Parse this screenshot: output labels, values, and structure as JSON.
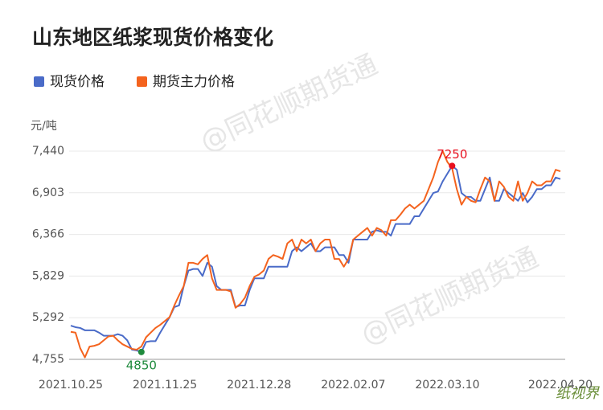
{
  "chart_data": {
    "type": "line",
    "title": "山东地区纸浆现货价格变化",
    "y_unit": "元/吨",
    "categories": [
      "2021.10.25",
      null,
      null,
      null,
      null,
      null,
      null,
      null,
      null,
      null,
      null,
      null,
      null,
      null,
      null,
      null,
      null,
      null,
      null,
      null,
      "2021.11.25",
      null,
      null,
      null,
      null,
      null,
      null,
      null,
      null,
      null,
      null,
      null,
      null,
      null,
      null,
      null,
      null,
      null,
      null,
      null,
      "2021.12.28",
      null,
      null,
      null,
      null,
      null,
      null,
      null,
      null,
      null,
      null,
      null,
      null,
      null,
      null,
      null,
      null,
      null,
      null,
      null,
      "2022.02.07",
      null,
      null,
      null,
      null,
      null,
      null,
      null,
      null,
      null,
      null,
      null,
      null,
      null,
      null,
      null,
      null,
      null,
      null,
      null,
      "2022.03.10",
      null,
      null,
      null,
      null,
      null,
      null,
      null,
      null,
      null,
      null,
      null,
      null,
      null,
      null,
      null,
      null,
      null,
      null,
      null,
      null,
      null,
      null,
      null,
      "2022.04.20"
    ],
    "series": [
      {
        "name": "现货价格",
        "color": "#4a6bc8",
        "values": [
          5190,
          5170,
          5160,
          5130,
          5130,
          5130,
          5100,
          5060,
          5060,
          5060,
          5080,
          5060,
          5000,
          4880,
          4870,
          4850,
          4980,
          4990,
          4990,
          5100,
          5200,
          5300,
          5430,
          5450,
          5700,
          5900,
          5920,
          5920,
          5830,
          6000,
          5950,
          5700,
          5650,
          5650,
          5650,
          5430,
          5450,
          5450,
          5650,
          5800,
          5800,
          5800,
          5950,
          5950,
          5950,
          5950,
          5950,
          6150,
          6200,
          6150,
          6200,
          6250,
          6150,
          6150,
          6200,
          6200,
          6200,
          6100,
          6100,
          6000,
          6300,
          6300,
          6300,
          6300,
          6400,
          6420,
          6400,
          6400,
          6350,
          6500,
          6500,
          6500,
          6500,
          6600,
          6600,
          6700,
          6800,
          6900,
          6920,
          7050,
          7150,
          7250,
          7200,
          6900,
          6850,
          6850,
          6800,
          6800,
          6950,
          7100,
          6800,
          6800,
          6950,
          6900,
          6850,
          6800,
          6900,
          6780,
          6850,
          6950,
          6950,
          7000,
          7000,
          7100,
          7080
        ]
      },
      {
        "name": "期货主力价格",
        "color": "#f4631e",
        "values": [
          5110,
          5100,
          4900,
          4780,
          4920,
          4930,
          4950,
          5000,
          5050,
          5060,
          5000,
          4950,
          4920,
          4890,
          4880,
          4920,
          5040,
          5100,
          5160,
          5200,
          5250,
          5300,
          5450,
          5580,
          5700,
          6000,
          6000,
          5980,
          6050,
          6100,
          5800,
          5650,
          5650,
          5650,
          5630,
          5420,
          5470,
          5550,
          5700,
          5820,
          5850,
          5900,
          6050,
          6100,
          6080,
          6050,
          6250,
          6300,
          6150,
          6300,
          6250,
          6300,
          6150,
          6250,
          6300,
          6300,
          6050,
          6050,
          5950,
          6050,
          6300,
          6350,
          6400,
          6450,
          6350,
          6450,
          6420,
          6350,
          6550,
          6550,
          6620,
          6700,
          6750,
          6700,
          6750,
          6800,
          6950,
          7100,
          7300,
          7440,
          7300,
          7220,
          6950,
          6750,
          6850,
          6800,
          6780,
          6950,
          7100,
          7050,
          6800,
          7050,
          6980,
          6850,
          6800,
          7050,
          6800,
          6900,
          7050,
          7000,
          7000,
          7050,
          7050,
          7200,
          7180
        ]
      }
    ],
    "marked_points": [
      {
        "series": 0,
        "index": 15,
        "color": "#1e8a3c"
      },
      {
        "series": 0,
        "index": 81,
        "color": "#e8101e"
      }
    ],
    "ylim": [
      4755,
      7440
    ],
    "yticks": [
      {
        "value": 4755,
        "label": "4,755"
      },
      {
        "value": 5292,
        "label": "5,292"
      },
      {
        "value": 5829,
        "label": "5,829"
      },
      {
        "value": 6366,
        "label": "6,366"
      },
      {
        "value": 6903,
        "label": "6,903"
      },
      {
        "value": 7440,
        "label": "7,440"
      }
    ],
    "grid": true,
    "watermarks": [
      "@同花顺期货通",
      "@同花顺期货通"
    ],
    "logo": "纸视界"
  }
}
